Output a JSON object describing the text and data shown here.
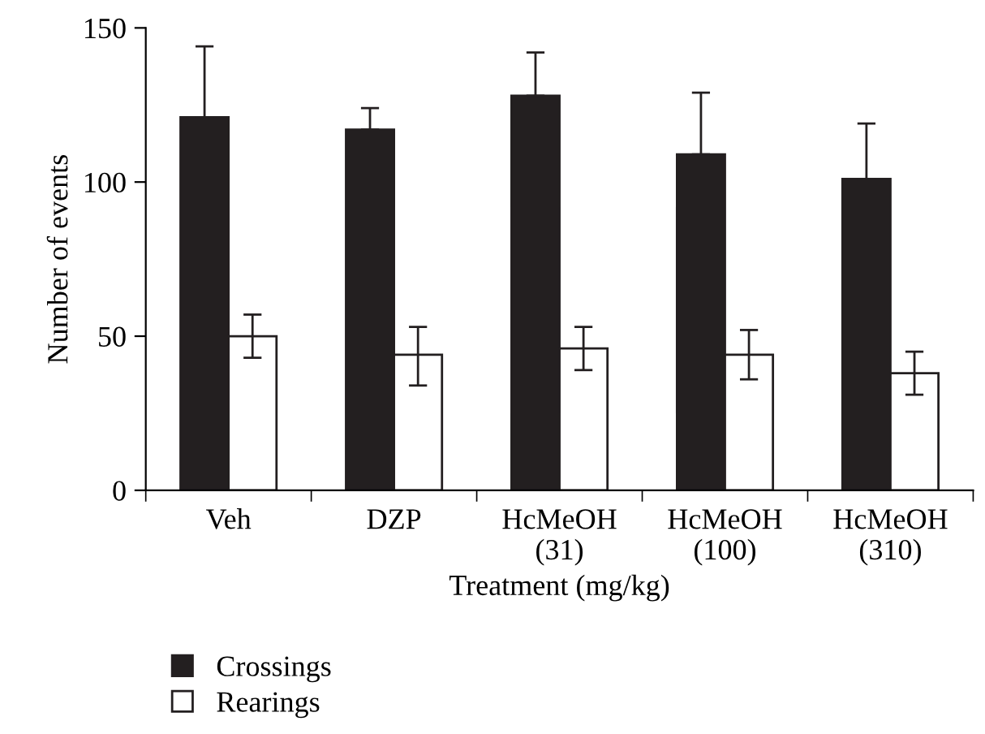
{
  "chart_data": {
    "type": "bar",
    "categories": [
      "Veh",
      "DZP",
      "HcMeOH\n(31)",
      "HcMeOH\n(100)",
      "HcMeOH\n(310)"
    ],
    "xlabel": "Treatment (mg/kg)",
    "ylabel": "Number of events",
    "ylim": [
      0,
      150
    ],
    "yticks": [
      0,
      50,
      100,
      150
    ],
    "grid": false,
    "legend": "bottom left",
    "series": [
      {
        "name": "Crossings",
        "color": "#231f20",
        "values": [
          121,
          117,
          128,
          109,
          101
        ],
        "errors": [
          [
            121,
            144
          ],
          [
            117,
            124
          ],
          [
            128,
            142
          ],
          [
            109,
            129
          ],
          [
            101,
            119
          ]
        ]
      },
      {
        "name": "Rearings",
        "color": "#ffffff",
        "values": [
          50,
          44,
          46,
          44,
          38
        ],
        "errors": [
          [
            43,
            57
          ],
          [
            34,
            53
          ],
          [
            39,
            53
          ],
          [
            36,
            52
          ],
          [
            31,
            45
          ]
        ]
      }
    ]
  }
}
